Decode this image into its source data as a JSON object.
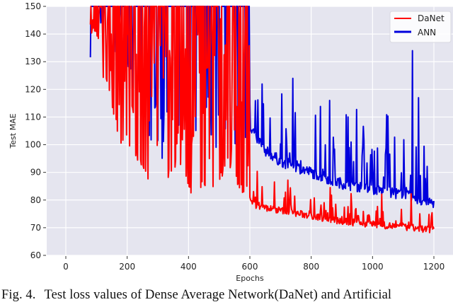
{
  "chart_data": {
    "type": "line",
    "title": "",
    "xlabel": "Epochs",
    "ylabel": "Test MAE",
    "xlim": [
      -58,
      1267
    ],
    "ylim": [
      60,
      150
    ],
    "xticks": [
      0,
      200,
      400,
      600,
      800,
      1000,
      1200
    ],
    "yticks": [
      60,
      70,
      80,
      90,
      100,
      110,
      120,
      130,
      140,
      150
    ],
    "grid": true,
    "background": "#e5e5ef",
    "legend_position": "upper right",
    "series": [
      {
        "name": "DaNet",
        "color": "#ff0000",
        "description": "Highly unstable for epochs ~80-600 (spikes between ~80 and >150), drops sharply at epoch ~600 to ~78, then decays slowly to ~68 at epoch 1200 with spikes up to ~86",
        "x": [
          80,
          100,
          120,
          140,
          160,
          180,
          200,
          220,
          240,
          260,
          280,
          300,
          320,
          340,
          360,
          380,
          400,
          420,
          440,
          460,
          480,
          500,
          520,
          540,
          560,
          580,
          595,
          600,
          620,
          650,
          700,
          750,
          800,
          850,
          900,
          950,
          1000,
          1050,
          1100,
          1150,
          1200
        ],
        "values": [
          138,
          141,
          122,
          120,
          108,
          100,
          101,
          95,
          93,
          88,
          87,
          88,
          85,
          89,
          92,
          86,
          83,
          82,
          84,
          85,
          83,
          86,
          90,
          92,
          85,
          82,
          84,
          78,
          77,
          76,
          75,
          74,
          73,
          72,
          71,
          70.5,
          70,
          69.5,
          69,
          68.5,
          68
        ]
      },
      {
        "name": "ANN",
        "color": "#0000dd",
        "description": "Mostly above 150 before epoch ~600 with dips to ~100, then drops to ~105 at epoch 600 and decays to ~77 at epoch 1200 with frequent spikes (max ~134 near epoch 1130)",
        "x": [
          200,
          250,
          300,
          350,
          400,
          450,
          500,
          550,
          600,
          610,
          650,
          700,
          750,
          800,
          850,
          900,
          950,
          1000,
          1050,
          1100,
          1130,
          1150,
          1200
        ],
        "values": [
          150,
          120,
          115,
          110,
          115,
          120,
          112,
          105,
          105,
          103,
          96,
          92,
          90,
          88,
          86,
          84,
          83,
          82,
          81,
          80,
          79,
          78,
          77
        ],
        "notable_spikes": [
          {
            "x": 740,
            "y": 124
          },
          {
            "x": 860,
            "y": 116
          },
          {
            "x": 920,
            "y": 110
          },
          {
            "x": 1130,
            "y": 134
          },
          {
            "x": 1150,
            "y": 117
          }
        ]
      }
    ]
  },
  "caption": {
    "fig_label": "Fig. 4.",
    "text": "Test loss values of Dense Average Network(DaNet) and Artificial"
  }
}
